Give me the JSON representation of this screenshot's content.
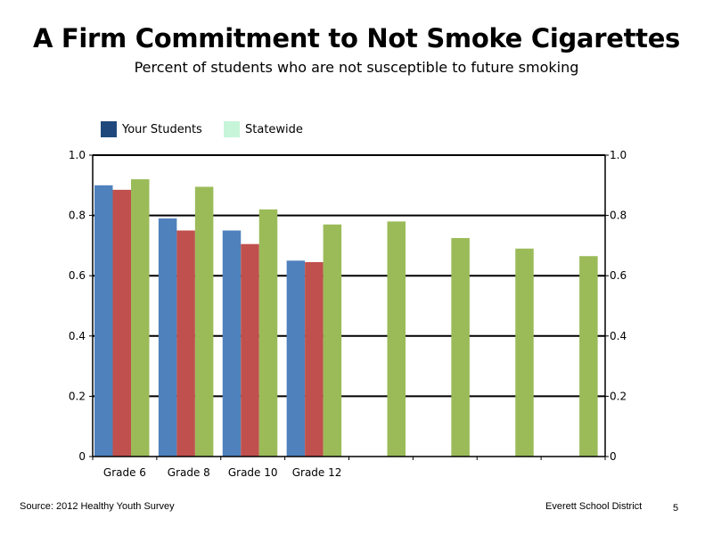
{
  "slide": {
    "title": "A Firm Commitment to Not Smoke Cigarettes",
    "subtitle": "Percent of students who are not susceptible to future smoking",
    "source": "Source: 2012 Healthy Youth Survey",
    "district": "Everett School District",
    "page_number": "5"
  },
  "legend": {
    "items": [
      {
        "label": "Your Students",
        "color": "#1F497D"
      },
      {
        "label": "Statewide",
        "color": "#C6F5D9"
      }
    ]
  },
  "chart_data": {
    "type": "bar",
    "title": "A Firm Commitment to Not Smoke Cigarettes",
    "subtitle": "Percent of students who are not susceptible to future smoking",
    "xlabel": "",
    "ylabel": "",
    "ylim": [
      0,
      1.0
    ],
    "y_ticks": [
      "0",
      "0.2",
      "0.4",
      "0.6",
      "0.8",
      "1.0"
    ],
    "y2_ticks": [
      "0",
      "0.2",
      "0.4",
      "0.6",
      "0.8",
      "1.0"
    ],
    "categories": [
      "Grade 6",
      "Grade 8",
      "Grade 10",
      "Grade 12",
      "",
      "",
      "",
      ""
    ],
    "series": [
      {
        "color": "#4F81BD",
        "values": [
          0.9,
          0.79,
          0.75,
          0.65,
          null,
          null,
          null,
          null
        ]
      },
      {
        "color": "#C0504D",
        "values": [
          0.885,
          0.75,
          0.705,
          0.645,
          null,
          null,
          null,
          null
        ]
      },
      {
        "color": "#9BBB59",
        "values": [
          0.92,
          0.895,
          0.82,
          0.77,
          0.78,
          0.725,
          0.69,
          0.665
        ]
      }
    ],
    "grid": "horizontal",
    "legend_position": "top-left"
  }
}
